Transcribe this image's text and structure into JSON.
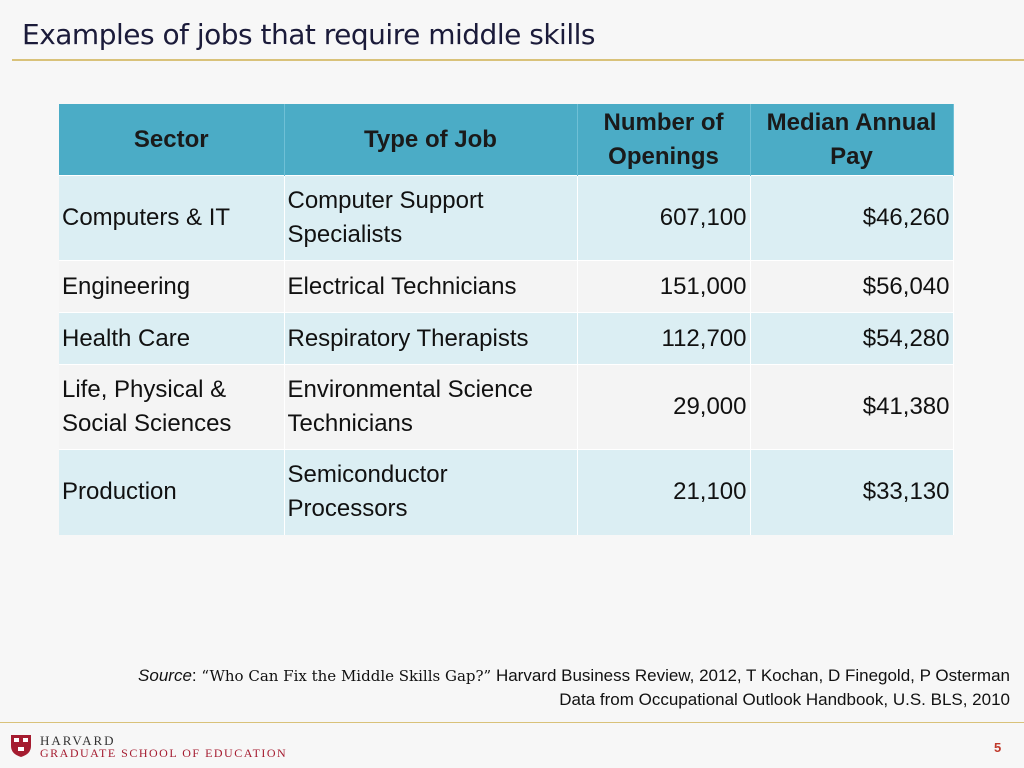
{
  "title": "Examples of jobs that require middle skills",
  "table": {
    "header": [
      "Sector",
      "Type of Job",
      "Number of Openings",
      "Median Annual Pay"
    ],
    "rows": [
      [
        "Computers & IT",
        "Computer Support Specialists",
        "607,100",
        "$46,260"
      ],
      [
        "Engineering",
        "Electrical Technicians",
        "151,000",
        "$56,040"
      ],
      [
        "Health Care",
        "Respiratory Therapists",
        "112,700",
        "$54,280"
      ],
      [
        "Life, Physical & Social Sciences",
        "Environmental Science Technicians",
        "29,000",
        "$41,380"
      ],
      [
        "Production",
        "Semiconductor Processors",
        "21,100",
        "$33,130"
      ]
    ]
  },
  "source": {
    "label": "Source",
    "separator": ":",
    "article": "“Who Can Fix the Middle Skills Gap?”",
    "rest": "Harvard Business Review, 2012, T Kochan, D Finegold, P Osterman",
    "line2": "Data from Occupational Outlook Handbook, U.S. BLS, 2010"
  },
  "footer": {
    "institution": "HARVARD",
    "school": "GRADUATE SCHOOL OF EDUCATION",
    "page": "5"
  }
}
